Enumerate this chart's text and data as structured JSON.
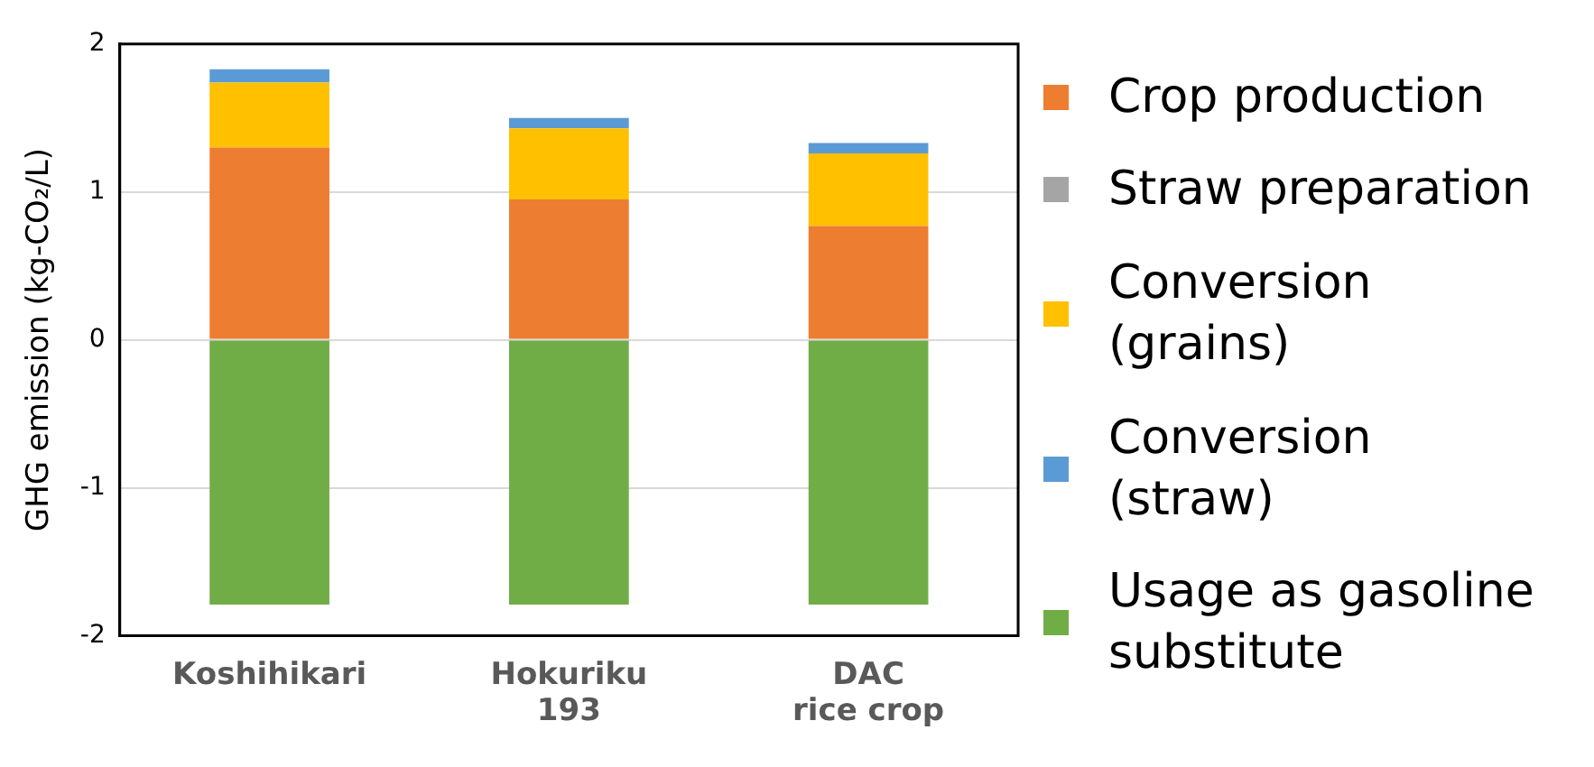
{
  "chart_data": {
    "type": "bar",
    "ylabel": "GHG emission (kg-CO₂/L)",
    "categories": [
      "Koshihikari",
      "Hokuriku 193",
      "DAC rice crop"
    ],
    "series": [
      {
        "name": "Crop production",
        "color": "#ed7d31",
        "values": [
          1.3,
          0.95,
          0.77
        ]
      },
      {
        "name": "Straw preparation",
        "color": "#a5a5a5",
        "values": [
          0,
          0,
          0
        ]
      },
      {
        "name": "Conversion (grains)",
        "color": "#ffc000",
        "values": [
          0.44,
          0.48,
          0.49
        ]
      },
      {
        "name": "Conversion (straw)",
        "color": "#5b9bd5",
        "values": [
          0.09,
          0.07,
          0.07
        ]
      },
      {
        "name": "Usage as gasoline substitute",
        "color": "#70ad47",
        "values": [
          -1.79,
          -1.79,
          -1.79
        ]
      }
    ],
    "stacked": true,
    "ylim": [
      -2,
      2
    ],
    "yticks": [
      -2,
      -1,
      0,
      1,
      2
    ],
    "grid": "y",
    "legend": "right"
  }
}
